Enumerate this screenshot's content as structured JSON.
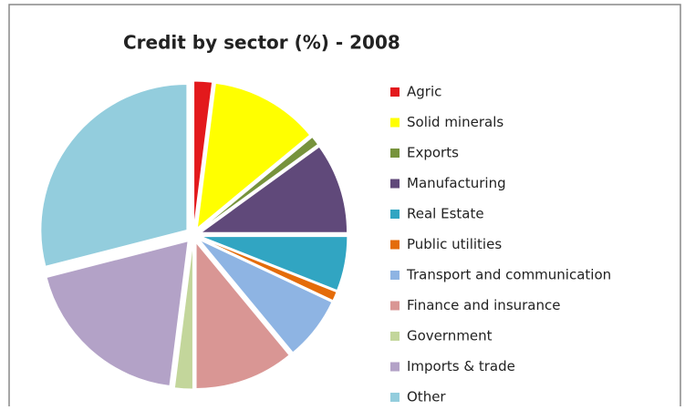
{
  "chart_data": {
    "type": "pie",
    "title": "Credit by sector (%) - 2008",
    "categories": [
      "Agric",
      "Solid minerals",
      "Exports",
      "Manufacturing",
      "Real Estate",
      "Public utilities",
      "Transport and communication",
      "Finance and insurance",
      "Government",
      "Imports & trade",
      "Other"
    ],
    "values": [
      2,
      12,
      1,
      10,
      6,
      1,
      7,
      11,
      2,
      19,
      29
    ],
    "colors": [
      "#e3191c",
      "#ffff00",
      "#77933c",
      "#60497a",
      "#31a5c2",
      "#e46c0a",
      "#8eb4e3",
      "#d99694",
      "#c3d69b",
      "#b3a2c7",
      "#93cddd"
    ],
    "legend": "right"
  }
}
